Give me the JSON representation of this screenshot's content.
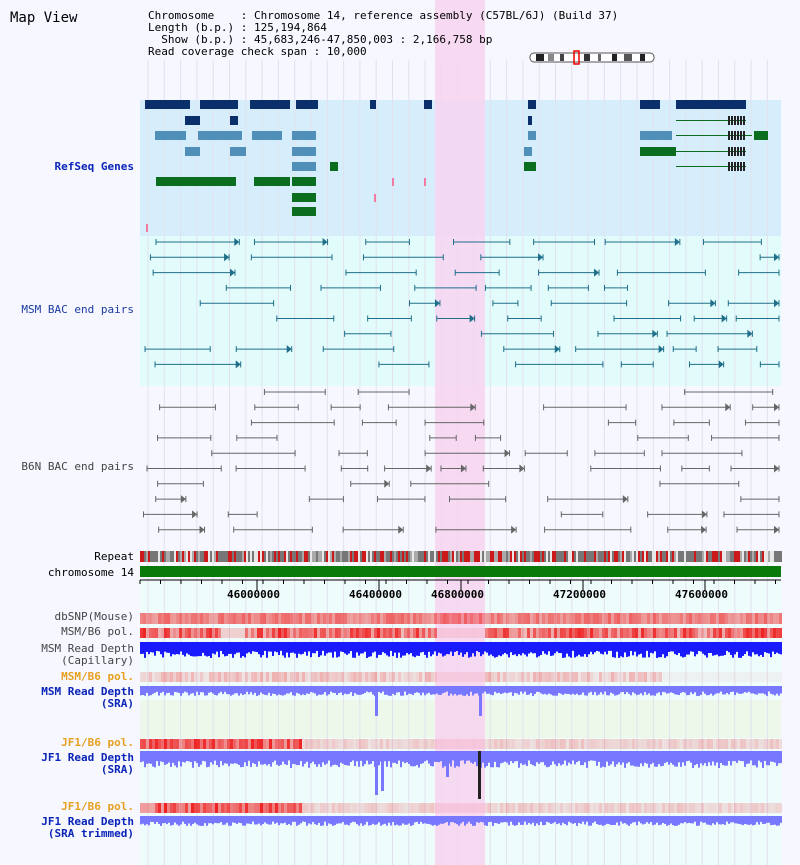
{
  "page": {
    "title": "Map View"
  },
  "info": {
    "chromosome_key": "Chromosome",
    "chromosome_val": "Chromosome 14, reference assembly (C57BL/6J) (Build 37)",
    "length_key": "Length (b.p.)",
    "length_val": "125,194,864",
    "show_key": "Show (b.p.)",
    "show_val": "45,683,246-47,850,003 : 2,166,758 bp",
    "coverage_key": "Read coverage check span",
    "coverage_val": "10,000"
  },
  "tracks": {
    "refseq": "RefSeq Genes",
    "msm_bac": "MSM BAC end pairs",
    "b6n_bac": "B6N BAC end pairs",
    "repeat": "Repeat",
    "chromosome": "chromosome 14",
    "dbsnp": "dbSNP(Mouse)",
    "msm_pol": "MSM/B6 pol.",
    "msm_depth_cap": "MSM Read Depth\n(Capillary)",
    "msm_pol2": "MSM/B6 pol.",
    "msm_depth_sra": "MSM Read Depth\n(SRA)",
    "jf1_pol": "JF1/B6 pol.",
    "jf1_depth_sra": "JF1 Read Depth\n(SRA)",
    "jf1_pol2": "JF1/B6 pol.",
    "jf1_depth_trim": "JF1 Read Depth\n(SRA trimmed)"
  },
  "axis": {
    "ticks": [
      "46000000",
      "46400000",
      "46800000",
      "47200000",
      "47600000"
    ]
  },
  "colors": {
    "highlight": "#f7d4f0",
    "refseq_bg": "#d6eefb",
    "bac_bg": "#e2fbfb",
    "chromosome_bar": "#0a7a0a",
    "depth_cap": "#1a1aff",
    "depth_sra": "#7777ff"
  }
}
